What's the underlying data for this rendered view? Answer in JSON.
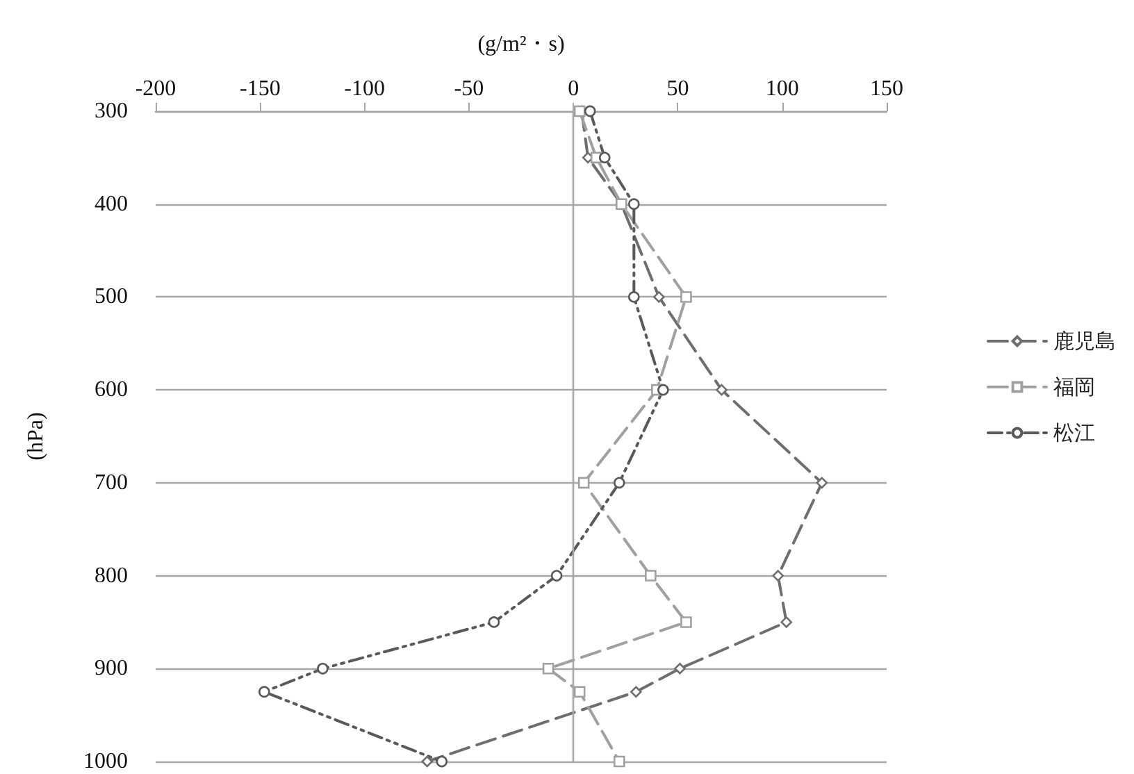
{
  "chart_data": {
    "type": "line",
    "xlabel": "(g/m²・s)",
    "ylabel": "(hPa)",
    "xlim": [
      -200,
      150
    ],
    "xticks": [
      -200,
      -150,
      -100,
      -50,
      0,
      50,
      100,
      150
    ],
    "ylim": [
      1000,
      300
    ],
    "yticks": [
      300,
      400,
      500,
      600,
      700,
      800,
      900,
      1000
    ],
    "grid": "y",
    "legend": "right",
    "ref_lines": [
      {
        "axis": "x",
        "value": 0,
        "color": "#a6a6a6"
      }
    ],
    "series": [
      {
        "name": "鹿児島",
        "color": "#6e6e6e",
        "marker": "diamond",
        "line_style": "dashed",
        "x": [
          4,
          7,
          23,
          41,
          71,
          119,
          98,
          102,
          51,
          30,
          -70
        ],
        "values": [
          300,
          350,
          400,
          500,
          600,
          700,
          800,
          850,
          900,
          925,
          1000
        ]
      },
      {
        "name": "福岡",
        "color": "#a0a0a0",
        "marker": "square",
        "line_style": "dashed",
        "x": [
          3,
          11,
          23,
          54,
          40,
          5,
          37,
          54,
          -12,
          3,
          22
        ],
        "values": [
          300,
          350,
          400,
          500,
          600,
          700,
          800,
          850,
          900,
          925,
          1000
        ]
      },
      {
        "name": "松江",
        "color": "#595959",
        "marker": "circle",
        "line_style": "dotted",
        "x": [
          8,
          15,
          29,
          29,
          43,
          22,
          -8,
          -38,
          -120,
          -148,
          -63
        ],
        "values": [
          300,
          350,
          400,
          500,
          600,
          700,
          800,
          850,
          900,
          925,
          1000
        ]
      }
    ]
  }
}
